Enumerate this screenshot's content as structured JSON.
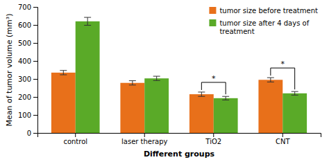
{
  "chart_data": {
    "type": "bar",
    "categories": [
      "control",
      "laser therapy",
      "TiO2",
      "CNT"
    ],
    "series": [
      {
        "name": "tumor size before treatment",
        "color": "#e8701a",
        "values": [
          335,
          278,
          215,
          295
        ],
        "errors": [
          12,
          12,
          12,
          12
        ]
      },
      {
        "name": "tumor size after 4 days of\ntreatment",
        "color": "#5aaa28",
        "values": [
          620,
          303,
          193,
          220
        ],
        "errors": [
          22,
          12,
          10,
          10
        ]
      }
    ],
    "ylabel": "Mean of tumor volume (mm³)",
    "xlabel": "Different groups",
    "ylim": [
      0,
      700
    ],
    "yticks": [
      0,
      100,
      200,
      300,
      400,
      500,
      600,
      700
    ],
    "annotations": [
      {
        "text": "*",
        "category": "TiO2"
      },
      {
        "text": "*",
        "category": "CNT"
      }
    ],
    "legend": "upper right",
    "grid": false
  }
}
